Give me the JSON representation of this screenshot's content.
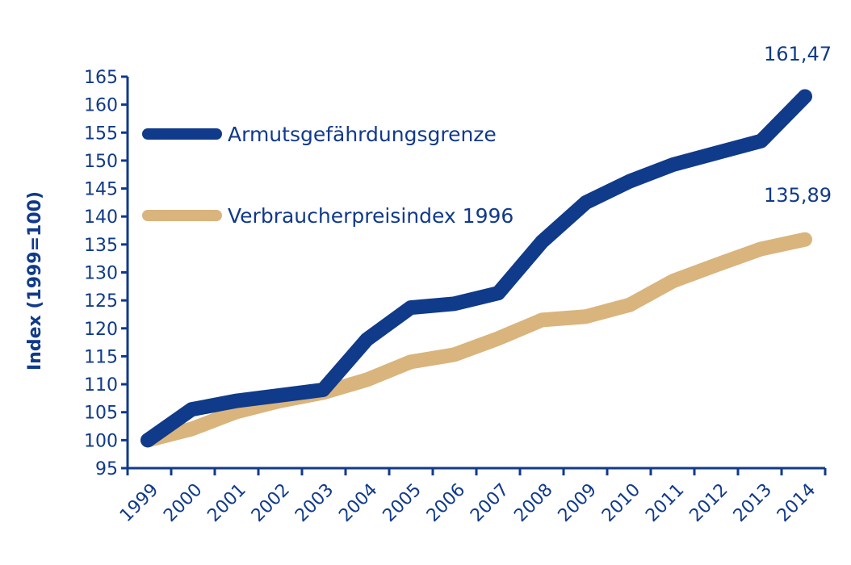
{
  "chart_data": {
    "type": "line",
    "title": "",
    "xlabel": "",
    "ylabel": "Index (1999=100)",
    "categories": [
      "1999",
      "2000",
      "2001",
      "2002",
      "2003",
      "2004",
      "2005",
      "2006",
      "2007",
      "2008",
      "2009",
      "2010",
      "2011",
      "2012",
      "2013",
      "2014"
    ],
    "ylim": [
      95,
      165
    ],
    "yticks": [
      95,
      100,
      105,
      110,
      115,
      120,
      125,
      130,
      135,
      140,
      145,
      150,
      155,
      160,
      165
    ],
    "grid": false,
    "legend_position": "upper-left",
    "series": [
      {
        "name": "Armutsgefährdungsgrenze",
        "color": "#103a8a",
        "values": [
          100,
          105.5,
          107,
          108,
          109,
          118,
          123.7,
          124.4,
          126.3,
          135.5,
          142.5,
          146.3,
          149.3,
          151.4,
          153.5,
          161.47
        ]
      },
      {
        "name": "Verbraucherpreisindex 1996",
        "color": "#d9b47c",
        "values": [
          100,
          102,
          105,
          107,
          108.5,
          110.8,
          114,
          115.3,
          118.2,
          121.5,
          122.1,
          124.2,
          128.5,
          131.4,
          134.2,
          135.89
        ]
      }
    ],
    "annotations": [
      {
        "series": 0,
        "text": "161,47"
      },
      {
        "series": 1,
        "text": "135,89"
      }
    ]
  }
}
